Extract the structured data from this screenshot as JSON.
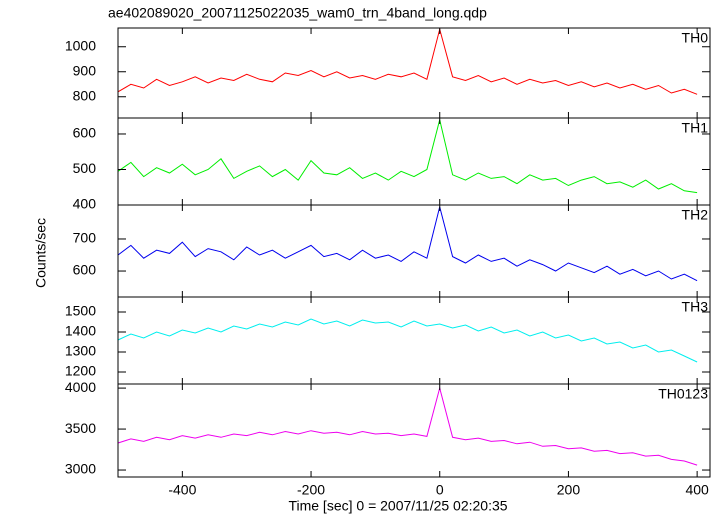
{
  "chart_data": {
    "type": "line",
    "title": "ae402089020_20071125022035_wam0_trn_4band_long.qdp",
    "y_label": "Counts/sec",
    "x_label": "Time [sec] 0 = 2007/11/25 02:20:35",
    "xlim": [
      -500,
      420
    ],
    "xticks": [
      -400,
      -200,
      0,
      200,
      400
    ],
    "x": [
      -500,
      -480,
      -460,
      -440,
      -420,
      -400,
      -380,
      -360,
      -340,
      -320,
      -300,
      -280,
      -260,
      -240,
      -220,
      -200,
      -180,
      -160,
      -140,
      -120,
      -100,
      -80,
      -60,
      -40,
      -20,
      0,
      20,
      40,
      60,
      80,
      100,
      120,
      140,
      160,
      180,
      200,
      220,
      240,
      260,
      280,
      300,
      320,
      340,
      360,
      380,
      400
    ],
    "series": [
      {
        "name": "TH0",
        "color": "#ff0000",
        "ylim": [
          715,
          1075
        ],
        "yticks": [
          800,
          900,
          1000
        ],
        "values": [
          820,
          850,
          835,
          870,
          845,
          860,
          880,
          855,
          875,
          865,
          890,
          870,
          860,
          895,
          885,
          905,
          880,
          900,
          875,
          885,
          870,
          890,
          880,
          895,
          870,
          1070,
          880,
          865,
          885,
          860,
          875,
          850,
          870,
          855,
          865,
          845,
          860,
          840,
          855,
          835,
          850,
          830,
          845,
          815,
          830,
          810
        ]
      },
      {
        "name": "TH1",
        "color": "#00ee00",
        "ylim": [
          400,
          645
        ],
        "yticks": [
          400,
          500,
          600
        ],
        "values": [
          495,
          520,
          480,
          505,
          490,
          515,
          485,
          500,
          530,
          475,
          495,
          510,
          480,
          500,
          470,
          525,
          490,
          485,
          505,
          475,
          490,
          470,
          495,
          480,
          500,
          640,
          485,
          470,
          490,
          475,
          480,
          460,
          485,
          470,
          475,
          455,
          470,
          480,
          460,
          465,
          450,
          470,
          445,
          460,
          440,
          435
        ]
      },
      {
        "name": "TH2",
        "color": "#0000ee",
        "ylim": [
          519,
          806
        ],
        "yticks": [
          600,
          700
        ],
        "values": [
          650,
          680,
          640,
          665,
          655,
          690,
          645,
          670,
          660,
          635,
          675,
          650,
          665,
          640,
          660,
          680,
          645,
          655,
          635,
          665,
          640,
          650,
          630,
          660,
          640,
          800,
          645,
          625,
          650,
          630,
          640,
          615,
          635,
          620,
          600,
          625,
          610,
          595,
          615,
          590,
          605,
          585,
          600,
          575,
          590,
          570
        ]
      },
      {
        "name": "TH3",
        "color": "#00eeee",
        "ylim": [
          1140,
          1575
        ],
        "yticks": [
          1200,
          1300,
          1400,
          1500
        ],
        "values": [
          1360,
          1390,
          1370,
          1400,
          1380,
          1410,
          1395,
          1420,
          1400,
          1430,
          1415,
          1440,
          1425,
          1450,
          1435,
          1465,
          1440,
          1455,
          1430,
          1460,
          1445,
          1450,
          1425,
          1455,
          1430,
          1440,
          1420,
          1435,
          1405,
          1425,
          1395,
          1410,
          1380,
          1400,
          1370,
          1385,
          1355,
          1370,
          1340,
          1350,
          1320,
          1335,
          1300,
          1310,
          1280,
          1250
        ]
      },
      {
        "name": "TH0123",
        "color": "#ee00ee",
        "ylim": [
          2915,
          4050
        ],
        "yticks": [
          3000,
          3500,
          4000
        ],
        "values": [
          3330,
          3380,
          3350,
          3400,
          3370,
          3420,
          3390,
          3430,
          3400,
          3440,
          3420,
          3460,
          3430,
          3470,
          3440,
          3480,
          3450,
          3460,
          3430,
          3470,
          3440,
          3450,
          3420,
          3440,
          3410,
          4000,
          3400,
          3370,
          3390,
          3350,
          3360,
          3320,
          3340,
          3290,
          3300,
          3260,
          3270,
          3230,
          3240,
          3200,
          3210,
          3170,
          3180,
          3130,
          3110,
          3060
        ]
      }
    ]
  }
}
